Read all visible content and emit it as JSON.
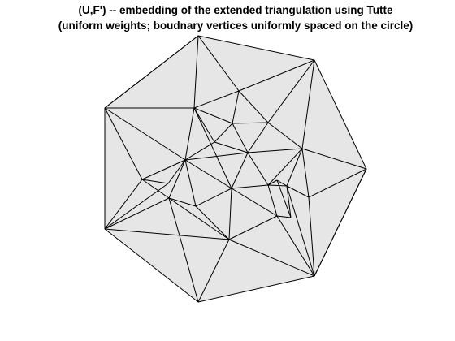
{
  "figure": {
    "title_line1": "(U,F') -- embedding of the extended triangulation using Tutte",
    "title_line2": "(uniform weights; boudnary vertices uniformly spaced on the circle)"
  },
  "colors": {
    "face_fill": "#e6e6e6",
    "edge_stroke": "#000000",
    "background": "#ffffff"
  }
}
